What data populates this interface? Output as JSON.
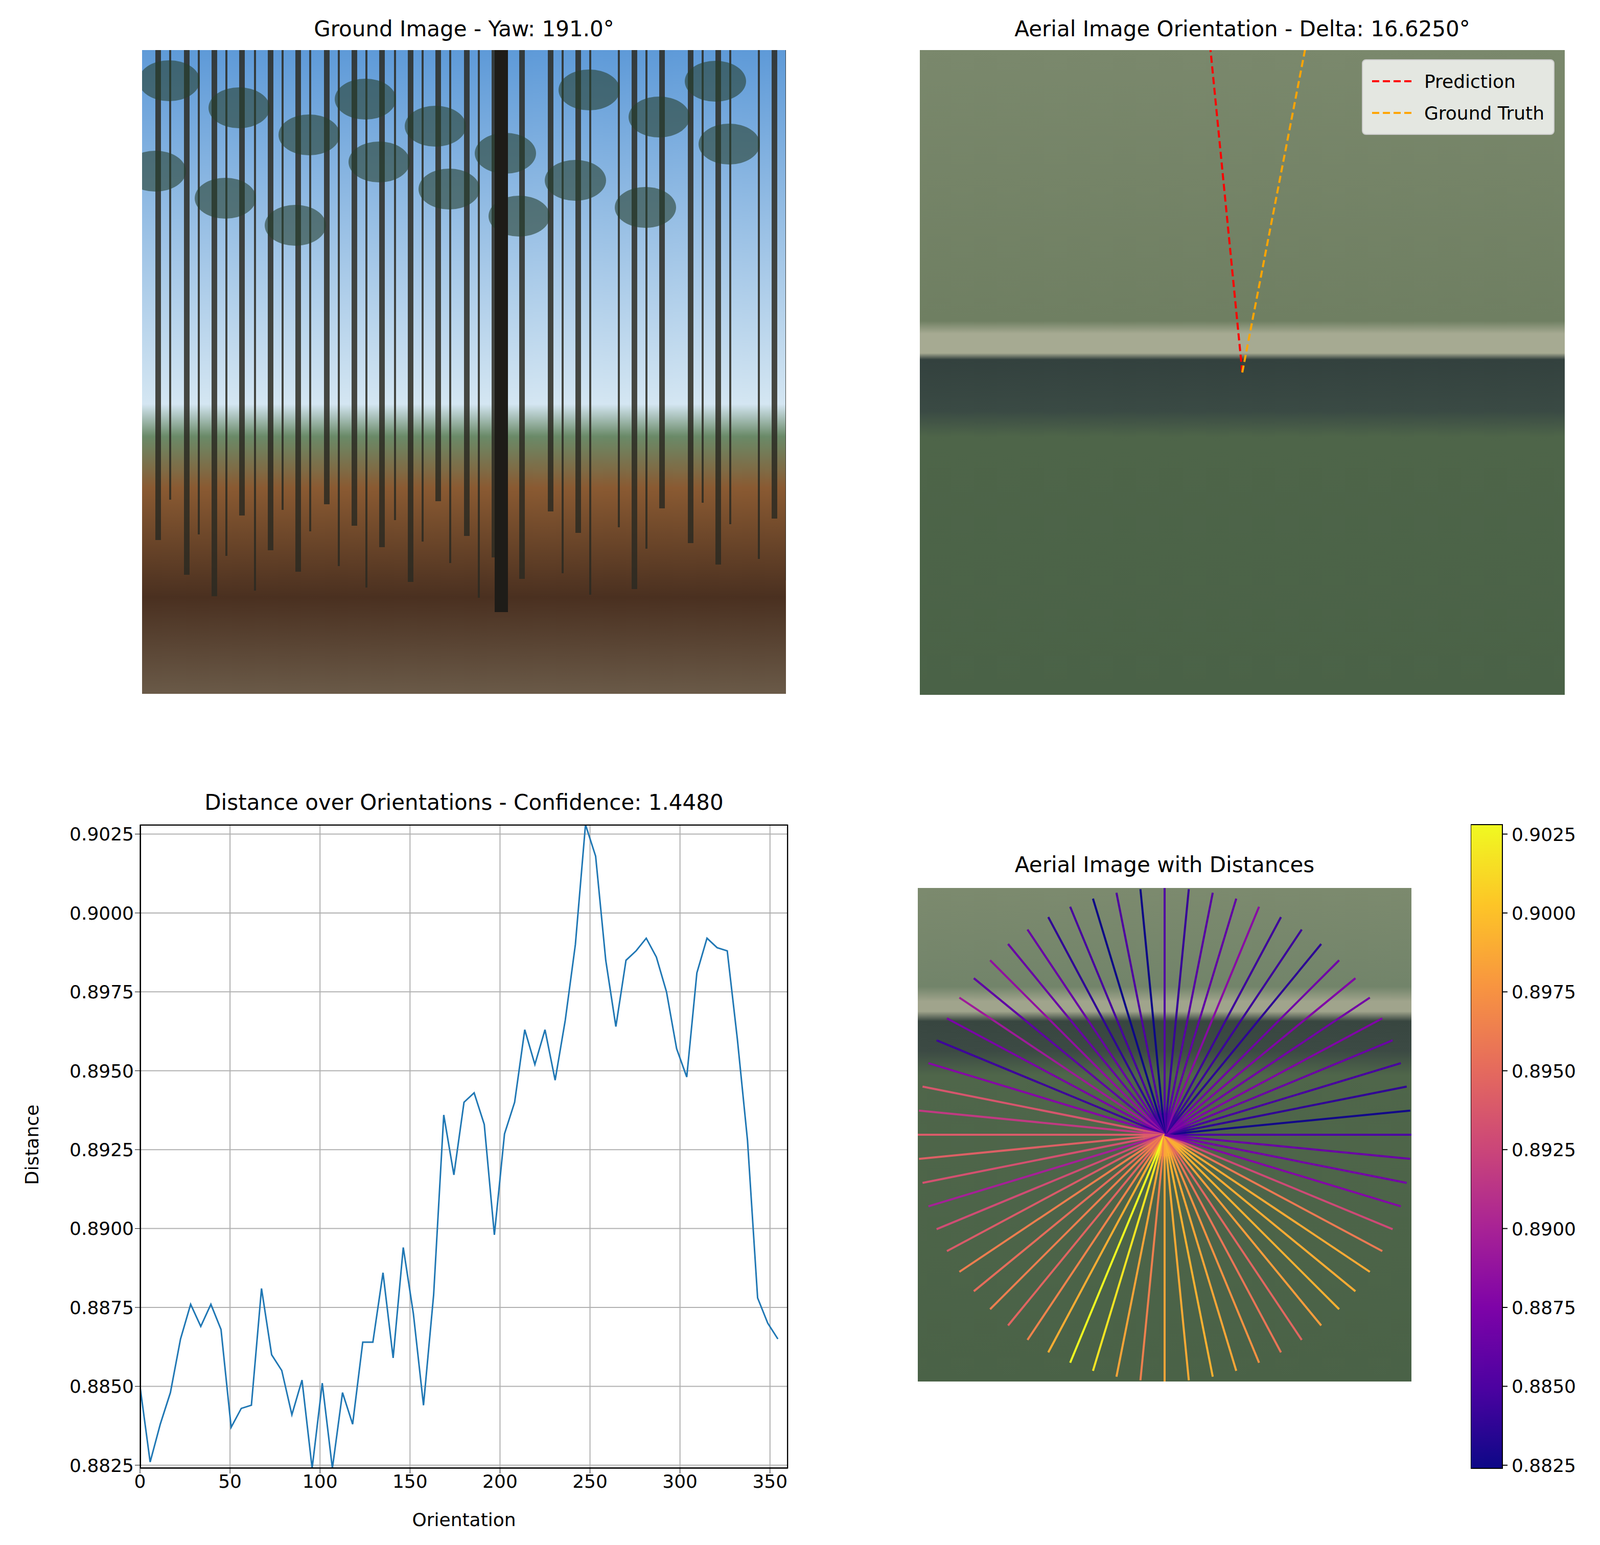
{
  "chart_data": [
    {
      "type": "image",
      "title": "Ground Image - Yaw: 191.0°",
      "tick_labels": false
    },
    {
      "type": "line",
      "title": "Aerial Image Orientation - Delta: 16.6250°",
      "tick_labels": false,
      "legend": "upper right",
      "series": [
        {
          "name": "Prediction",
          "color": "red",
          "line_style": "dashed",
          "angle": 354.375
        },
        {
          "name": "Ground Truth",
          "color": "orange",
          "line_style": "dashed",
          "angle": 11.0
        }
      ]
    },
    {
      "type": "line",
      "title": "Distance over Orientations - Confidence: 1.4480",
      "x_label": "Orientation",
      "y_label": "Distance",
      "color": "#1f77b4",
      "grid": true,
      "xlim": [
        0,
        360
      ],
      "xticks": [
        0,
        50,
        100,
        150,
        200,
        250,
        300,
        350
      ],
      "ylim": [
        0.8824,
        0.9028
      ],
      "yticks": [
        0.8825,
        {
          "value": 0.885,
          "label": "0.8850"
        },
        0.8875,
        {
          "value": 0.89,
          "label": "0.8900"
        },
        0.8925,
        {
          "value": 0.895,
          "label": "0.8950"
        },
        0.8975,
        {
          "value": 0.9,
          "label": "0.9000"
        },
        0.9025
      ],
      "x": [
        0,
        5.625,
        11.25,
        16.875,
        22.5,
        28.125,
        33.75,
        39.375,
        45,
        50.625,
        56.25,
        61.875,
        67.5,
        73.125,
        78.75,
        84.375,
        90,
        95.625,
        101.25,
        106.875,
        112.5,
        118.125,
        123.75,
        129.375,
        135,
        140.625,
        146.25,
        151.875,
        157.5,
        163.125,
        168.75,
        174.375,
        180,
        185.625,
        191.25,
        196.875,
        202.5,
        208.125,
        213.75,
        219.375,
        225,
        230.625,
        236.25,
        241.875,
        247.5,
        253.125,
        258.75,
        264.375,
        270,
        275.625,
        281.25,
        286.875,
        292.5,
        298.125,
        303.75,
        309.375,
        315,
        320.625,
        326.25,
        331.875,
        337.5,
        343.125,
        348.75,
        354.375
      ],
      "values": [
        0.885,
        0.8826,
        0.8838,
        0.8848,
        0.8865,
        0.8876,
        0.8869,
        0.8876,
        0.8868,
        0.8837,
        0.8843,
        0.8844,
        0.8881,
        0.886,
        0.8855,
        0.8841,
        0.8852,
        0.8824,
        0.8851,
        0.8824,
        0.8848,
        0.8838,
        0.8864,
        0.8864,
        0.8886,
        0.8859,
        0.8894,
        0.8873,
        0.8844,
        0.8879,
        0.8936,
        0.8917,
        0.894,
        0.8943,
        0.8933,
        0.8898,
        0.893,
        0.894,
        0.8963,
        0.8952,
        0.8963,
        0.8947,
        0.8966,
        0.899,
        0.9028,
        0.9018,
        0.8985,
        0.8964,
        0.8985,
        0.8988,
        0.8992,
        0.8986,
        0.8975,
        0.8957,
        0.8948,
        0.8981,
        0.8992,
        0.8989,
        0.8988,
        0.896,
        0.8928,
        0.8878,
        0.887,
        0.8865
      ]
    },
    {
      "type": "radial",
      "title": "Aerial Image with Distances",
      "tick_labels": false,
      "x": [
        0,
        5.625,
        11.25,
        16.875,
        22.5,
        28.125,
        33.75,
        39.375,
        45,
        50.625,
        56.25,
        61.875,
        67.5,
        73.125,
        78.75,
        84.375,
        90,
        95.625,
        101.25,
        106.875,
        112.5,
        118.125,
        123.75,
        129.375,
        135,
        140.625,
        146.25,
        151.875,
        157.5,
        163.125,
        168.75,
        174.375,
        180,
        185.625,
        191.25,
        196.875,
        202.5,
        208.125,
        213.75,
        219.375,
        225,
        230.625,
        236.25,
        241.875,
        247.5,
        253.125,
        258.75,
        264.375,
        270,
        275.625,
        281.25,
        286.875,
        292.5,
        298.125,
        303.75,
        309.375,
        315,
        320.625,
        326.25,
        331.875,
        337.5,
        343.125,
        348.75,
        354.375
      ],
      "values": [
        0.885,
        0.8826,
        0.8838,
        0.8848,
        0.8865,
        0.8876,
        0.8869,
        0.8876,
        0.8868,
        0.8837,
        0.8843,
        0.8844,
        0.8881,
        0.886,
        0.8855,
        0.8841,
        0.8852,
        0.8824,
        0.8851,
        0.8824,
        0.8848,
        0.8838,
        0.8864,
        0.8864,
        0.8886,
        0.8859,
        0.8894,
        0.8873,
        0.8844,
        0.8879,
        0.8936,
        0.8917,
        0.894,
        0.8943,
        0.8933,
        0.8898,
        0.893,
        0.894,
        0.8963,
        0.8952,
        0.8963,
        0.8947,
        0.8966,
        0.899,
        0.9028,
        0.9018,
        0.8985,
        0.8964,
        0.8985,
        0.8988,
        0.8992,
        0.8986,
        0.8975,
        0.8957,
        0.8948,
        0.8981,
        0.8992,
        0.8989,
        0.8988,
        0.896,
        0.8928,
        0.8878,
        0.887,
        0.8865
      ],
      "colorbar": {
        "range": [
          0.8824,
          0.9028
        ],
        "ticks": [
          0.8825,
          {
            "value": 0.885,
            "label": "0.8850"
          },
          0.8875,
          {
            "value": 0.89,
            "label": "0.8900"
          },
          0.8925,
          {
            "value": 0.895,
            "label": "0.8950"
          },
          0.8975,
          {
            "value": 0.9,
            "label": "0.9000"
          },
          0.9025
        ]
      }
    }
  ]
}
